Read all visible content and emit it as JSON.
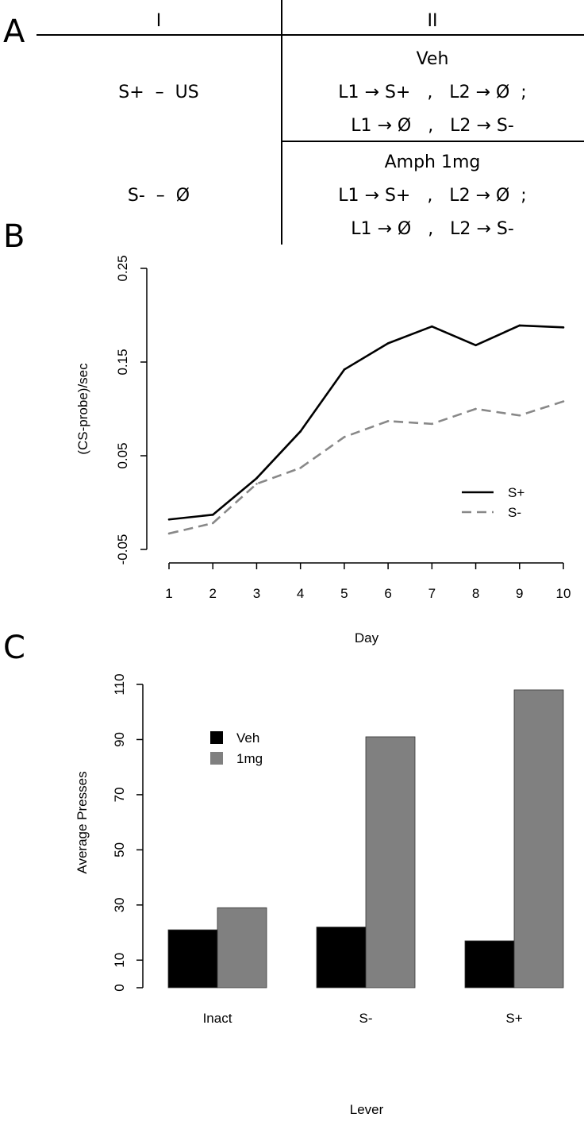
{
  "panel_a": {
    "letter": "A",
    "col_headers": [
      "I",
      "II"
    ],
    "stage1": [
      "S+  –  US",
      "S-  –  Ø"
    ],
    "veh_block": {
      "title": "Veh",
      "line1": "L1 → S+   ,   L2 → Ø  ;",
      "line2": "L1 → Ø   ,   L2 → S-"
    },
    "amph_block": {
      "title": "Amph 1mg",
      "line1": "L1 → S+   ,   L2 → Ø  ;",
      "line2": "L1 → Ø   ,   L2 → S-"
    }
  },
  "chart_data": [
    {
      "panel": "B",
      "type": "line",
      "title": "",
      "xlabel": "Day",
      "ylabel": "(CS-probe)/sec",
      "x": [
        1,
        2,
        3,
        4,
        5,
        6,
        7,
        8,
        9,
        10
      ],
      "xticks": [
        "1",
        "2",
        "3",
        "4",
        "5",
        "6",
        "7",
        "8",
        "9",
        "10"
      ],
      "yticks": [
        -0.05,
        0.05,
        0.15,
        0.25
      ],
      "ytick_labels": [
        "-0.05",
        "0.05",
        "0.15",
        "0.25"
      ],
      "ylim": [
        -0.05,
        0.25
      ],
      "series": [
        {
          "name": "S+",
          "values": [
            -0.018,
            -0.013,
            0.026,
            0.076,
            0.142,
            0.17,
            0.188,
            0.168,
            0.189,
            0.187
          ],
          "color": "#000000",
          "dash": "solid"
        },
        {
          "name": "S-",
          "values": [
            -0.033,
            -0.022,
            0.02,
            0.037,
            0.07,
            0.087,
            0.084,
            0.1,
            0.093,
            0.108
          ],
          "color": "#888888",
          "dash": "dashed"
        }
      ],
      "legend": "right"
    },
    {
      "panel": "C",
      "type": "bar",
      "title": "",
      "xlabel": "Lever",
      "ylabel": "Average Presses",
      "categories": [
        "Inact",
        "S-",
        "S+"
      ],
      "yticks": [
        0,
        10,
        30,
        50,
        70,
        90,
        110
      ],
      "ytick_labels": [
        "0",
        "10",
        "30",
        "50",
        "70",
        "90",
        "110"
      ],
      "ylim": [
        0,
        110
      ],
      "series": [
        {
          "name": "Veh",
          "values": [
            21,
            22,
            17
          ],
          "color": "#000000"
        },
        {
          "name": "1mg",
          "values": [
            29,
            91,
            108
          ],
          "color": "#808080"
        }
      ],
      "legend": "top-left"
    }
  ]
}
